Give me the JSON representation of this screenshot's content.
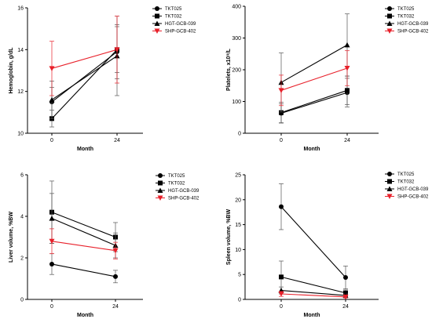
{
  "chart_data": [
    {
      "id": "hemoglobin",
      "type": "line",
      "ylabel": "Hemoglobin, g/dL",
      "xlabel": "Month",
      "x": [
        0,
        24
      ],
      "x_tick_labels": [
        "0",
        "24"
      ],
      "ylim": [
        10,
        16
      ],
      "y_ticks": [
        10,
        12,
        14,
        16
      ],
      "legend_position": "top-right",
      "series": [
        {
          "name": "TKT025",
          "marker": "circle",
          "color": "#000000",
          "values": [
            11.5,
            13.9
          ],
          "err": [
            0.7,
            1.3
          ]
        },
        {
          "name": "TKT032",
          "marker": "square",
          "color": "#000000",
          "values": [
            10.7,
            14.0
          ],
          "err": [
            0.4,
            1.1
          ]
        },
        {
          "name": "HGT-GCB-039",
          "marker": "triangle-up",
          "color": "#000000",
          "values": [
            11.6,
            13.7
          ],
          "err": [
            0.9,
            1.9
          ]
        },
        {
          "name": "SHP-GCB-402",
          "marker": "triangle-down",
          "color": "#e8202a",
          "values": [
            13.1,
            14.0
          ],
          "err": [
            1.3,
            1.6
          ]
        }
      ]
    },
    {
      "id": "platelets",
      "type": "line",
      "ylabel": "Platelets, x10⁹/L",
      "xlabel": "Month",
      "x": [
        0,
        24
      ],
      "x_tick_labels": [
        "0",
        "24"
      ],
      "ylim": [
        0,
        400
      ],
      "y_ticks": [
        0,
        100,
        200,
        300,
        400
      ],
      "legend_position": "top-right",
      "series": [
        {
          "name": "TKT025",
          "marker": "circle",
          "color": "#000000",
          "values": [
            63,
            128
          ],
          "err": [
            30,
            45
          ]
        },
        {
          "name": "TKT032",
          "marker": "square",
          "color": "#000000",
          "values": [
            65,
            135
          ],
          "err": [
            33,
            45
          ]
        },
        {
          "name": "HGT-GCB-039",
          "marker": "triangle-up",
          "color": "#000000",
          "values": [
            160,
            278
          ],
          "err": [
            93,
            98
          ]
        },
        {
          "name": "SHP-GCB-402",
          "marker": "triangle-down",
          "color": "#e8202a",
          "values": [
            135,
            205
          ],
          "err": [
            48,
            55
          ]
        }
      ]
    },
    {
      "id": "liver",
      "type": "line",
      "ylabel": "Liver volume, %BW",
      "xlabel": "Month",
      "x": [
        0,
        24
      ],
      "x_tick_labels": [
        "0",
        "24"
      ],
      "ylim": [
        0,
        6
      ],
      "y_ticks": [
        0,
        2,
        4,
        6
      ],
      "legend_position": "top-right",
      "series": [
        {
          "name": "TKT025",
          "marker": "circle",
          "color": "#000000",
          "values": [
            1.7,
            1.1
          ],
          "err": [
            0.5,
            0.3
          ]
        },
        {
          "name": "TKT032",
          "marker": "square",
          "color": "#000000",
          "values": [
            4.2,
            3.0
          ],
          "err": [
            1.5,
            0.7
          ]
        },
        {
          "name": "HGT-GCB-039",
          "marker": "triangle-up",
          "color": "#000000",
          "values": [
            3.9,
            2.6
          ],
          "err": [
            1.2,
            0.6
          ]
        },
        {
          "name": "SHP-GCB-402",
          "marker": "triangle-down",
          "color": "#e8202a",
          "values": [
            2.8,
            2.35
          ],
          "err": [
            0.6,
            0.4
          ]
        }
      ]
    },
    {
      "id": "spleen",
      "type": "line",
      "ylabel": "Spleen volume, %BW",
      "xlabel": "Month",
      "x": [
        0,
        24
      ],
      "x_tick_labels": [
        "0",
        "24"
      ],
      "ylim": [
        0,
        25
      ],
      "y_ticks": [
        0,
        5,
        10,
        15,
        20,
        25
      ],
      "legend_position": "top-right",
      "series": [
        {
          "name": "TKT025",
          "marker": "circle",
          "color": "#000000",
          "values": [
            18.6,
            4.4
          ],
          "err": [
            4.6,
            2.3
          ]
        },
        {
          "name": "TKT032",
          "marker": "square",
          "color": "#000000",
          "values": [
            4.5,
            1.3
          ],
          "err": [
            3.2,
            0.6
          ]
        },
        {
          "name": "HGT-GCB-039",
          "marker": "triangle-up",
          "color": "#000000",
          "values": [
            1.8,
            0.8
          ],
          "err": [
            0.7,
            0.3
          ]
        },
        {
          "name": "SHP-GCB-402",
          "marker": "triangle-down",
          "color": "#e8202a",
          "values": [
            1.1,
            0.5
          ],
          "err": [
            0.5,
            0.2
          ]
        }
      ]
    }
  ]
}
